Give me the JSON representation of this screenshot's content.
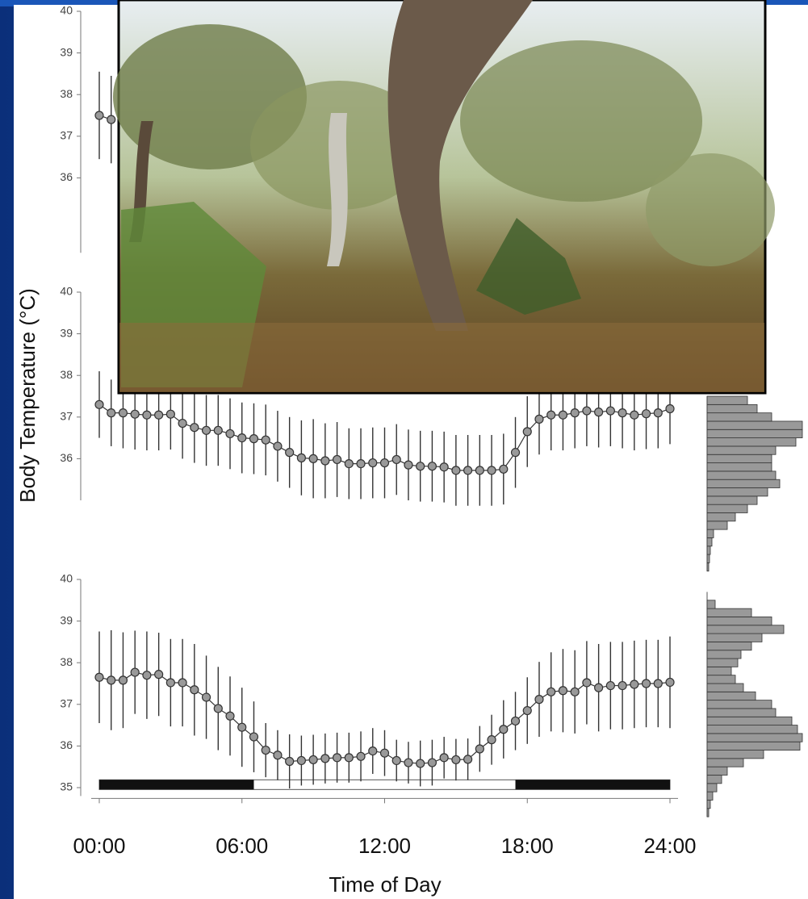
{
  "chart_data": [
    {
      "type": "line",
      "xlim": [
        0,
        24
      ],
      "ylim": [
        34.2,
        40
      ],
      "yticks": [
        36,
        37,
        38,
        39,
        40
      ],
      "x": [
        0,
        0.5
      ],
      "values": [
        37.5,
        37.4
      ],
      "errors": [
        1.05,
        1.05
      ],
      "color": "#999999",
      "line_color": "#333333"
    },
    {
      "type": "line",
      "xlim": [
        0,
        24
      ],
      "ylim": [
        35,
        40
      ],
      "yticks": [
        36,
        37,
        38,
        39,
        40
      ],
      "ylabel": "Body Temperature (°C)",
      "x": [
        0,
        0.5,
        1,
        1.5,
        2,
        2.5,
        3,
        3.5,
        4,
        4.5,
        5,
        5.5,
        6,
        6.5,
        7,
        7.5,
        8,
        8.5,
        9,
        9.5,
        10,
        10.5,
        11,
        11.5,
        12,
        12.5,
        13,
        13.5,
        14,
        14.5,
        15,
        15.5,
        16,
        16.5,
        17,
        17.5,
        18,
        18.5,
        19,
        19.5,
        20,
        20.5,
        21,
        21.5,
        22,
        22.5,
        23,
        23.5,
        24
      ],
      "values": [
        37.3,
        37.1,
        37.1,
        37.07,
        37.05,
        37.05,
        37.07,
        36.85,
        36.75,
        36.68,
        36.68,
        36.6,
        36.5,
        36.48,
        36.45,
        36.3,
        36.15,
        36.02,
        36.0,
        35.95,
        35.98,
        35.88,
        35.88,
        35.9,
        35.9,
        35.98,
        35.85,
        35.82,
        35.82,
        35.8,
        35.72,
        35.72,
        35.72,
        35.72,
        35.75,
        36.15,
        36.65,
        36.95,
        37.05,
        37.05,
        37.1,
        37.15,
        37.12,
        37.15,
        37.1,
        37.05,
        37.08,
        37.1,
        37.2
      ],
      "errors": [
        0.8,
        0.8,
        0.85,
        0.85,
        0.85,
        0.85,
        0.85,
        0.85,
        0.85,
        0.85,
        0.85,
        0.85,
        0.85,
        0.85,
        0.85,
        0.85,
        0.85,
        0.9,
        0.95,
        0.9,
        0.9,
        0.85,
        0.85,
        0.85,
        0.85,
        0.85,
        0.85,
        0.85,
        0.85,
        0.85,
        0.85,
        0.85,
        0.85,
        0.85,
        0.85,
        0.85,
        0.85,
        0.85,
        0.85,
        0.85,
        0.85,
        0.85,
        0.85,
        0.85,
        0.85,
        0.85,
        0.85,
        0.85,
        0.85
      ],
      "histogram": {
        "bins": [
          33.3,
          33.5,
          33.7,
          33.9,
          34.1,
          34.3,
          34.5,
          34.7,
          34.9,
          35.1,
          35.3,
          35.5,
          35.7,
          35.9,
          36.1,
          36.3,
          36.5,
          36.7,
          36.9,
          37.1,
          37.3,
          37.5
        ],
        "counts": [
          2,
          3,
          4,
          6,
          8,
          25,
          35,
          50,
          62,
          75,
          90,
          85,
          80,
          80,
          85,
          110,
          118,
          118,
          80,
          62,
          50
        ]
      },
      "color": "#999999",
      "line_color": "#333333"
    },
    {
      "type": "line",
      "xlim": [
        0,
        24
      ],
      "ylim": [
        34.8,
        40
      ],
      "yticks": [
        35,
        36,
        37,
        38,
        39,
        40
      ],
      "xticks": [
        {
          "value": 0,
          "label": "00:00"
        },
        {
          "value": 6,
          "label": "06:00"
        },
        {
          "value": 12,
          "label": "12:00"
        },
        {
          "value": 18,
          "label": "18:00"
        },
        {
          "value": 24,
          "label": "24:00"
        }
      ],
      "xlabel": "Time of Day",
      "x": [
        0,
        0.5,
        1,
        1.5,
        2,
        2.5,
        3,
        3.5,
        4,
        4.5,
        5,
        5.5,
        6,
        6.5,
        7,
        7.5,
        8,
        8.5,
        9,
        9.5,
        10,
        10.5,
        11,
        11.5,
        12,
        12.5,
        13,
        13.5,
        14,
        14.5,
        15,
        15.5,
        16,
        16.5,
        17,
        17.5,
        18,
        18.5,
        19,
        19.5,
        20,
        20.5,
        21,
        21.5,
        22,
        22.5,
        23,
        23.5,
        24
      ],
      "values": [
        37.65,
        37.58,
        37.58,
        37.77,
        37.7,
        37.72,
        37.52,
        37.52,
        37.35,
        37.17,
        36.9,
        36.72,
        36.45,
        36.22,
        35.9,
        35.78,
        35.63,
        35.65,
        35.67,
        35.7,
        35.72,
        35.72,
        35.75,
        35.88,
        35.83,
        35.65,
        35.6,
        35.58,
        35.6,
        35.72,
        35.67,
        35.68,
        35.93,
        36.15,
        36.4,
        36.6,
        36.85,
        37.12,
        37.3,
        37.33,
        37.3,
        37.52,
        37.4,
        37.45,
        37.45,
        37.48,
        37.5,
        37.5,
        37.53
      ],
      "errors": [
        1.1,
        1.2,
        1.15,
        1.0,
        1.05,
        1.0,
        1.05,
        1.05,
        1.1,
        1.0,
        1.0,
        0.95,
        0.95,
        0.85,
        0.65,
        0.6,
        0.65,
        0.6,
        0.6,
        0.6,
        0.6,
        0.6,
        0.6,
        0.55,
        0.55,
        0.5,
        0.5,
        0.55,
        0.55,
        0.5,
        0.5,
        0.5,
        0.55,
        0.6,
        0.7,
        0.7,
        0.8,
        0.9,
        0.95,
        1.0,
        1.0,
        1.0,
        1.05,
        1.05,
        1.05,
        1.05,
        1.05,
        1.05,
        1.1
      ],
      "histogram": {
        "bins": [
          34.3,
          34.5,
          34.7,
          34.9,
          35.1,
          35.3,
          35.5,
          35.7,
          35.9,
          36.1,
          36.3,
          36.5,
          36.7,
          36.9,
          37.1,
          37.3,
          37.5,
          37.7,
          37.9,
          38.1,
          38.3,
          38.5,
          38.7,
          38.9,
          39.1,
          39.3,
          39.5,
          39.7
        ],
        "counts": [
          2,
          4,
          7,
          12,
          18,
          25,
          45,
          70,
          115,
          118,
          112,
          105,
          85,
          80,
          60,
          45,
          35,
          30,
          38,
          42,
          55,
          68,
          95,
          80,
          55,
          10,
          0
        ]
      },
      "dark_periods": [
        [
          0,
          6.5
        ],
        [
          17.5,
          24
        ]
      ],
      "color": "#999999",
      "line_color": "#333333"
    }
  ]
}
